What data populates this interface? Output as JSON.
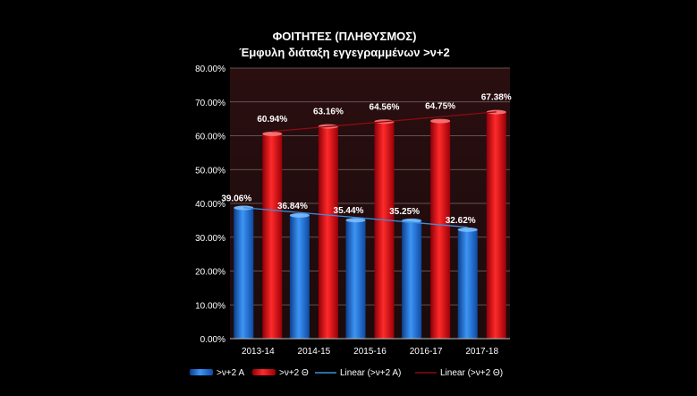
{
  "chart_data": {
    "type": "bar",
    "title": "ΦΟΙΤΗΤΕΣ (ΠΛΗΘΥΣΜΟΣ)",
    "subtitle": "Έμφυλη διάταξη εγγεγραμμένων >ν+2",
    "categories": [
      "2013-14",
      "2014-15",
      "2015-16",
      "2016-17",
      "2017-18"
    ],
    "series": [
      {
        "name": ">ν+2 Α",
        "values": [
          39.06,
          36.84,
          35.44,
          35.25,
          32.62
        ],
        "color": "#1e6fd9",
        "labels": [
          "39.06%",
          "36.84%",
          "35.44%",
          "35.25%",
          "32.62%"
        ]
      },
      {
        "name": ">ν+2 Θ",
        "values": [
          60.94,
          63.16,
          64.56,
          64.75,
          67.38
        ],
        "color": "#e0101a",
        "labels": [
          "60.94%",
          "63.16%",
          "64.56%",
          "64.75%",
          "67.38%"
        ]
      }
    ],
    "trendlines": [
      {
        "name": "Linear (>ν+2 Α)",
        "color": "#3a8fe0",
        "series_index": 0
      },
      {
        "name": "Linear (>ν+2 Θ)",
        "color": "#8a0c10",
        "series_index": 1
      }
    ],
    "ylim": [
      0,
      80
    ],
    "yticks": [
      "0.00%",
      "10.00%",
      "20.00%",
      "30.00%",
      "40.00%",
      "50.00%",
      "60.00%",
      "70.00%",
      "80.00%"
    ],
    "grid": true,
    "legend": "bottom"
  }
}
